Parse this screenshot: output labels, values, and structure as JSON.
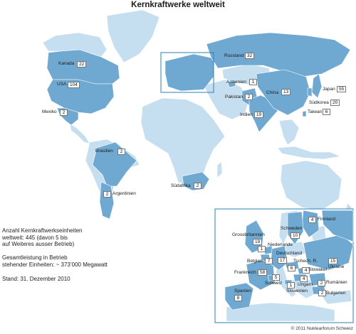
{
  "title": "Kernkraftwerke weltweit",
  "colors": {
    "water": "#ffffff",
    "land": "#c6dff0",
    "nuclear": "#6fa9d1",
    "border": "#ffffff"
  },
  "world": {
    "countries": [
      {
        "id": "kanada",
        "name": "Kanada",
        "units": "22"
      },
      {
        "id": "usa",
        "name": "USA",
        "units": "104"
      },
      {
        "id": "mexiko",
        "name": "Mexiko",
        "units": "2"
      },
      {
        "id": "brasilien",
        "name": "Brasilien",
        "units": "2"
      },
      {
        "id": "argentinien",
        "name": "Argentinien",
        "units": "2"
      },
      {
        "id": "suedafrika",
        "name": "Südafrika",
        "units": "2"
      },
      {
        "id": "russland",
        "name": "Russland",
        "units": "32"
      },
      {
        "id": "armenien",
        "name": "Armenien",
        "units": "1"
      },
      {
        "id": "pakistan",
        "name": "Pakistan",
        "units": "2"
      },
      {
        "id": "china",
        "name": "China",
        "units": "13"
      },
      {
        "id": "indien",
        "name": "Indien",
        "units": "19"
      },
      {
        "id": "japan",
        "name": "Japan",
        "units": "55"
      },
      {
        "id": "suedkorea",
        "name": "Südkorea",
        "units": "20"
      },
      {
        "id": "taiwan",
        "name": "Taiwan",
        "units": "6"
      }
    ]
  },
  "europe": {
    "countries": [
      {
        "id": "finnland",
        "name": "Finnland",
        "units": "4"
      },
      {
        "id": "schweden",
        "name": "Schweden",
        "units": "10"
      },
      {
        "id": "grossbritannien",
        "name": "Grossbritannien",
        "units": "19"
      },
      {
        "id": "niederlande",
        "name": "Niederlande",
        "units": "1"
      },
      {
        "id": "deutschland",
        "name": "Deutschland",
        "units": "17"
      },
      {
        "id": "belgien",
        "name": "Belgien",
        "units": "7"
      },
      {
        "id": "tschech",
        "name": "Tschech. R.",
        "units": "6"
      },
      {
        "id": "ukraine",
        "name": "Ukraine",
        "units": "15"
      },
      {
        "id": "slowakei",
        "name": "Slowakei",
        "units": "4"
      },
      {
        "id": "frankreich",
        "name": "Frankreich",
        "units": "58"
      },
      {
        "id": "schweiz",
        "name": "Schweiz",
        "units": "5"
      },
      {
        "id": "ungarn",
        "name": "Ungarn",
        "units": "4"
      },
      {
        "id": "rumaenien",
        "name": "Rumänien",
        "units": "2"
      },
      {
        "id": "slowenien",
        "name": "Slowenien",
        "units": "1"
      },
      {
        "id": "bulgarien",
        "name": "Bulgarien",
        "units": "2"
      },
      {
        "id": "spanien",
        "name": "Spanien",
        "units": "8"
      }
    ]
  },
  "notes": {
    "units_line1": "Anzahl Kernkraftwerkseinheiten",
    "units_line2": "weltweit: 445 (davon 5 bis",
    "units_line3": "auf Weiteres ausser Betrieb)",
    "capacity_line1": "Gesamtleistung in Betrieb",
    "capacity_line2": "stehender Einheiten: ~ 373’000 Megawatt",
    "date": "Stand: 31. Dezember 2010"
  },
  "credit": "© 2011 Nuklearforum Schweiz"
}
